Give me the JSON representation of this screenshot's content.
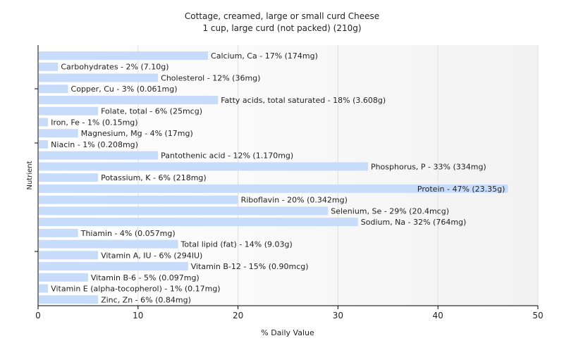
{
  "chart_data": {
    "type": "bar",
    "orientation": "horizontal",
    "title": "Cottage, creamed, large or small curd Cheese",
    "subtitle": "1 cup, large curd (not packed) (210g)",
    "xlabel": "% Daily Value",
    "ylabel": "Nutrient",
    "xlim": [
      0,
      50
    ],
    "xticks": [
      0,
      10,
      20,
      30,
      40,
      50
    ],
    "grid": true,
    "colors": {
      "bar": "#c7dcfb",
      "axis": "#000000",
      "grid": "#e0e0e0",
      "text": "#222222"
    },
    "categories": [
      "Calcium, Ca",
      "Carbohydrates",
      "Cholesterol",
      "Copper, Cu",
      "Fatty acids, total saturated",
      "Folate, total",
      "Iron, Fe",
      "Magnesium, Mg",
      "Niacin",
      "Pantothenic acid",
      "Phosphorus, P",
      "Potassium, K",
      "Protein",
      "Riboflavin",
      "Selenium, Se",
      "Sodium, Na",
      "Thiamin",
      "Total lipid (fat)",
      "Vitamin A, IU",
      "Vitamin B-12",
      "Vitamin B-6",
      "Vitamin E (alpha-tocopherol)",
      "Zinc, Zn"
    ],
    "values": [
      17,
      2,
      12,
      3,
      18,
      6,
      1,
      4,
      1,
      12,
      33,
      6,
      47,
      20,
      29,
      32,
      4,
      14,
      6,
      15,
      5,
      1,
      6
    ],
    "labels": [
      "Calcium, Ca - 17% (174mg)",
      "Carbohydrates - 2% (7.10g)",
      "Cholesterol - 12% (36mg)",
      "Copper, Cu - 3% (0.061mg)",
      "Fatty acids, total saturated - 18% (3.608g)",
      "Folate, total - 6% (25mcg)",
      "Iron, Fe - 1% (0.15mg)",
      "Magnesium, Mg - 4% (17mg)",
      "Niacin - 1% (0.208mg)",
      "Pantothenic acid - 12% (1.170mg)",
      "Phosphorus, P - 33% (334mg)",
      "Potassium, K - 6% (218mg)",
      "Protein - 47% (23.35g)",
      "Riboflavin - 20% (0.342mg)",
      "Selenium, Se - 29% (20.4mcg)",
      "Sodium, Na - 32% (764mg)",
      "Thiamin - 4% (0.057mg)",
      "Total lipid (fat) - 14% (9.03g)",
      "Vitamin A, IU - 6% (294IU)",
      "Vitamin B-12 - 15% (0.90mcg)",
      "Vitamin B-6 - 5% (0.097mg)",
      "Vitamin E (alpha-tocopherol) - 1% (0.17mg)",
      "Zinc, Zn - 6% (0.84mg)"
    ]
  }
}
